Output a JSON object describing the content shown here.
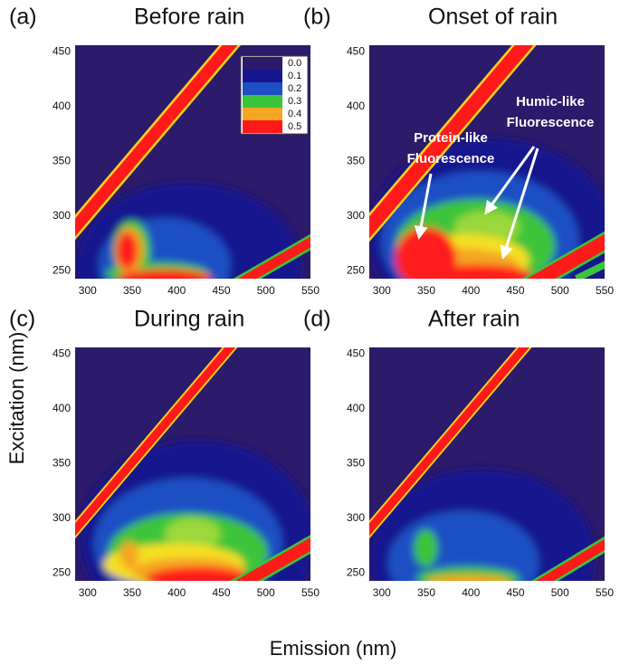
{
  "x_label": "Emission (nm)",
  "y_label": "Excitation (nm)",
  "chart_data": [
    {
      "type": "contour",
      "panel": "(a)",
      "title": "Before rain",
      "xlim": [
        286,
        550
      ],
      "xticks": [
        300,
        350,
        400,
        450,
        500,
        550
      ],
      "ylim": [
        243,
        456
      ],
      "yticks": [
        250,
        300,
        350,
        400,
        450
      ],
      "colorbar": {
        "levels": [
          {
            "value": 0,
            "label": "0.0"
          },
          {
            "value": 0.1,
            "label": "0.1"
          },
          {
            "value": 0.2,
            "label": "0.2"
          },
          {
            "value": 0.3,
            "label": "0.3"
          },
          {
            "value": 0.4,
            "label": "0.4"
          },
          {
            "value": 0.5,
            "label": "0.5"
          }
        ],
        "colors": [
          "#2c1a6b",
          "#16168f",
          "#1f4fc4",
          "#3cc43a",
          "#f5a623",
          "#ff1a1a"
        ]
      }
    },
    {
      "type": "contour",
      "panel": "(b)",
      "title": "Onset of rain",
      "xlim": [
        286,
        550
      ],
      "xticks": [
        300,
        350,
        400,
        450,
        500,
        550
      ],
      "ylim": [
        243,
        456
      ],
      "yticks": [
        250,
        300,
        350,
        400,
        450
      ],
      "annotations": [
        [
          "Protein-like",
          "Fluorescence"
        ],
        [
          "Humic-like",
          "Fluorescence"
        ]
      ]
    },
    {
      "type": "contour",
      "panel": "(c)",
      "title": "During rain",
      "xlim": [
        286,
        550
      ],
      "xticks": [
        300,
        350,
        400,
        450,
        500,
        550
      ],
      "ylim": [
        243,
        456
      ],
      "yticks": [
        250,
        300,
        350,
        400,
        450
      ]
    },
    {
      "type": "contour",
      "panel": "(d)",
      "title": "After rain",
      "xlim": [
        286,
        550
      ],
      "xticks": [
        300,
        350,
        400,
        450,
        500,
        550
      ],
      "ylim": [
        243,
        456
      ],
      "yticks": [
        250,
        300,
        350,
        400,
        450
      ]
    }
  ]
}
